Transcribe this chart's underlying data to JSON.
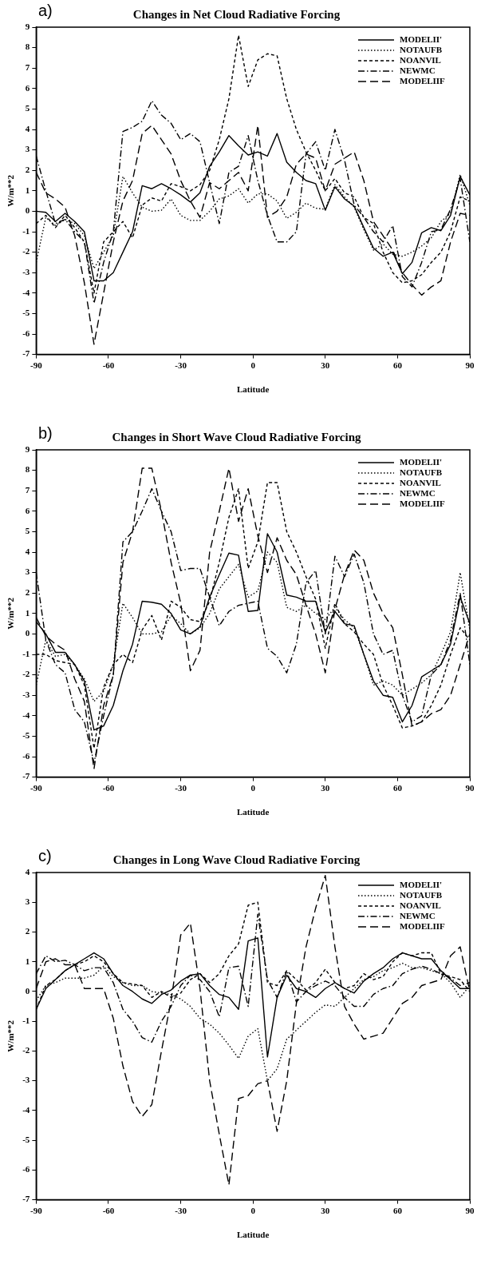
{
  "chart_data": [
    {
      "type": "line",
      "title": "Changes in Net Cloud Radiative Forcing",
      "xlabel": "Latitude",
      "ylabel": "W/m**2",
      "annotations": [
        "a)"
      ],
      "legend": "top right",
      "grid": false,
      "marker": "none",
      "x": [
        -90,
        -86,
        -82,
        -78,
        -74,
        -70,
        -66,
        -62,
        -58,
        -54,
        -50,
        -46,
        -42,
        -38,
        -34,
        -30,
        -26,
        -22,
        -18,
        -14,
        -10,
        -6,
        -2,
        2,
        6,
        10,
        14,
        18,
        22,
        26,
        30,
        34,
        38,
        42,
        46,
        50,
        54,
        58,
        62,
        66,
        70,
        74,
        78,
        82,
        86,
        90
      ],
      "xlim": [
        -90,
        90
      ],
      "xticks": [
        -90,
        -60,
        -30,
        0,
        30,
        60,
        90
      ],
      "ylim": [
        -7,
        9
      ],
      "yticks": [
        -7,
        -6,
        -5,
        -4,
        -3,
        -2,
        -1,
        0,
        1,
        2,
        3,
        4,
        5,
        6,
        7,
        8,
        9
      ],
      "series": [
        {
          "name": "MODELII'",
          "color": "#000000",
          "line_style": "solid",
          "values": [
            0,
            -0.05,
            -0.5,
            -0.1,
            -0.5,
            -1.0,
            -3.4,
            -3.4,
            -3.0,
            -2.0,
            -1.0,
            1.25,
            1.1,
            1.35,
            1.1,
            0.8,
            0.45,
            0.9,
            2.2,
            2.9,
            3.7,
            3.2,
            2.75,
            2.9,
            2.7,
            3.8,
            2.4,
            1.9,
            1.5,
            1.35,
            0.05,
            1.2,
            0.6,
            0.25,
            -0.8,
            -1.8,
            -2.2,
            -2.0,
            -3.05,
            -2.5,
            -1.05,
            -0.8,
            -0.95,
            -0.2,
            1.7,
            0.8
          ]
        },
        {
          "name": "NOTAUFB",
          "color": "#000000",
          "line_style": "dotted",
          "values": [
            -2.5,
            -0.3,
            -0.7,
            -0.4,
            -0.6,
            -1.2,
            -2.8,
            -2.0,
            -1.2,
            1.7,
            0.9,
            0.2,
            0.0,
            0.05,
            0.6,
            -0.2,
            -0.45,
            -0.45,
            0.0,
            0.6,
            0.75,
            1.1,
            0.4,
            0.85,
            0.85,
            0.5,
            -0.35,
            -0.05,
            0.4,
            0.15,
            0.1,
            1.3,
            0.7,
            0.2,
            -0.9,
            -1.9,
            -1.6,
            -2.1,
            -2.2,
            -2.0,
            -1.7,
            -1.3,
            -0.5,
            -0.1,
            1.8,
            0.3
          ]
        },
        {
          "name": "NOANVIL",
          "color": "#000000",
          "line_style": "dashed",
          "values": [
            -0.6,
            -0.2,
            -0.8,
            -0.2,
            -0.8,
            -1.5,
            -4.0,
            -1.5,
            -1.0,
            -0.5,
            -1.3,
            0.3,
            0.65,
            0.5,
            1.35,
            1.2,
            1.0,
            1.3,
            2.0,
            3.5,
            5.5,
            8.6,
            6.1,
            7.4,
            7.7,
            7.6,
            5.5,
            4.0,
            2.9,
            2.0,
            1.0,
            1.6,
            0.9,
            0.7,
            -0.3,
            -0.6,
            -2.0,
            -3.0,
            -3.5,
            -3.4,
            -3.1,
            -2.5,
            -2.0,
            -1.0,
            0.7,
            0.5
          ]
        },
        {
          "name": "NEWMC",
          "color": "#000000",
          "line_style": "dashdot",
          "values": [
            2.7,
            1.0,
            -0.6,
            -0.4,
            -1.0,
            -1.5,
            -4.5,
            -2.5,
            -1.0,
            3.9,
            4.1,
            4.4,
            5.4,
            4.7,
            4.3,
            3.5,
            3.8,
            3.4,
            1.4,
            -0.6,
            1.9,
            2.2,
            3.7,
            1.5,
            -0.2,
            -1.5,
            -1.5,
            -1.0,
            2.8,
            3.4,
            2.0,
            4.0,
            2.5,
            0.3,
            -0.3,
            -1.0,
            -1.5,
            -0.7,
            -3.2,
            -3.7,
            -2.5,
            -1.0,
            -0.9,
            0.1,
            1.6,
            -1.5
          ]
        },
        {
          "name": "MODELIIF",
          "color": "#000000",
          "line_style": "longdash",
          "values": [
            1.9,
            0.9,
            0.6,
            0.2,
            -1.2,
            -3.5,
            -6.5,
            -4.0,
            -1.5,
            0.5,
            1.5,
            3.8,
            4.2,
            3.5,
            2.8,
            1.5,
            0.5,
            -0.3,
            1.4,
            1.1,
            1.5,
            1.9,
            1.0,
            4.2,
            -0.3,
            0.0,
            0.7,
            2.3,
            2.8,
            2.6,
            1.0,
            2.3,
            2.6,
            2.9,
            1.5,
            -0.5,
            -1.2,
            -1.9,
            -3.0,
            -3.6,
            -4.1,
            -3.7,
            -3.4,
            -1.5,
            -0.1,
            -0.2
          ]
        }
      ]
    },
    {
      "type": "line",
      "title": "Changes in Short Wave Cloud Radiative Forcing",
      "xlabel": "Latitude",
      "ylabel": "W/m**2",
      "annotations": [
        "b)"
      ],
      "legend": "top right",
      "grid": false,
      "marker": "none",
      "x": [
        -90,
        -86,
        -82,
        -78,
        -74,
        -70,
        -66,
        -62,
        -58,
        -54,
        -50,
        -46,
        -42,
        -38,
        -34,
        -30,
        -26,
        -22,
        -18,
        -14,
        -10,
        -6,
        -2,
        2,
        6,
        10,
        14,
        18,
        22,
        26,
        30,
        34,
        38,
        42,
        46,
        50,
        54,
        58,
        62,
        66,
        70,
        74,
        78,
        82,
        86,
        90
      ],
      "xlim": [
        -90,
        90
      ],
      "xticks": [
        -90,
        -60,
        -30,
        0,
        30,
        60,
        90
      ],
      "ylim": [
        -7,
        9
      ],
      "yticks": [
        -7,
        -6,
        -5,
        -4,
        -3,
        -2,
        -1,
        0,
        1,
        2,
        3,
        4,
        5,
        6,
        7,
        8,
        9
      ],
      "series": [
        {
          "name": "MODELII'",
          "color": "#000000",
          "line_style": "solid",
          "values": [
            0.6,
            0,
            -0.9,
            -0.9,
            -1.5,
            -2.3,
            -4.7,
            -4.5,
            -3.5,
            -1.8,
            -0.5,
            1.6,
            1.55,
            1.45,
            1.0,
            0.2,
            0.0,
            0.35,
            1.8,
            2.9,
            3.95,
            3.85,
            1.1,
            1.15,
            4.9,
            4.0,
            1.9,
            1.8,
            1.6,
            1.6,
            0.1,
            1.1,
            0.5,
            0.4,
            -1.0,
            -2.3,
            -3.0,
            -3.1,
            -4.3,
            -3.5,
            -2.1,
            -1.8,
            -1.5,
            -0.5,
            1.8,
            0.5
          ]
        },
        {
          "name": "NOTAUFB",
          "color": "#000000",
          "line_style": "dotted",
          "values": [
            -2.5,
            -0.3,
            -1.1,
            -1.0,
            -1.5,
            -2.2,
            -3.3,
            -2.8,
            -1.5,
            1.5,
            0.8,
            0.0,
            0.0,
            0.1,
            0.9,
            0.5,
            0.0,
            0.3,
            1.0,
            2.2,
            2.8,
            3.4,
            1.8,
            2.1,
            4.0,
            3.5,
            1.3,
            1.1,
            1.4,
            1.0,
            0.7,
            1.3,
            0.7,
            0.3,
            -1.0,
            -2.5,
            -2.3,
            -2.5,
            -3.0,
            -2.7,
            -2.4,
            -2.0,
            -1.0,
            0.1,
            3.0,
            0.2
          ]
        },
        {
          "name": "NOANVIL",
          "color": "#000000",
          "line_style": "dashed",
          "values": [
            -1.0,
            -1.0,
            -1.3,
            -1.4,
            -1.5,
            -2.5,
            -5.6,
            -2.6,
            -1.5,
            -1.0,
            -1.4,
            0.2,
            0.9,
            -0.3,
            1.6,
            1.3,
            0.7,
            0.6,
            1.6,
            3.5,
            5.7,
            7.1,
            3.2,
            4.5,
            7.4,
            7.4,
            5.0,
            4.0,
            2.8,
            1.7,
            -0.7,
            1.5,
            0.5,
            0.1,
            -0.5,
            -1.0,
            -2.5,
            -3.5,
            -4.6,
            -4.5,
            -4.3,
            -3.5,
            -2.5,
            -1.0,
            0.3,
            -0.3
          ]
        },
        {
          "name": "NEWMC",
          "color": "#000000",
          "line_style": "dashdot",
          "values": [
            3.0,
            -0.3,
            -1.5,
            -1.9,
            -3.7,
            -4.3,
            -6.3,
            -4.0,
            -2.0,
            4.5,
            5.0,
            6.0,
            7.1,
            6.0,
            5.0,
            3.1,
            3.2,
            3.2,
            1.8,
            0.4,
            1.1,
            1.4,
            1.5,
            1.6,
            -0.7,
            -1.1,
            -1.9,
            -0.5,
            2.5,
            3.1,
            0.0,
            3.8,
            2.8,
            3.9,
            2.5,
            0.0,
            -1.0,
            -0.8,
            -3.0,
            -4.3,
            -4.0,
            -2.0,
            -1.5,
            -0.3,
            2.0,
            -1.5
          ]
        },
        {
          "name": "MODELIIF",
          "color": "#000000",
          "line_style": "longdash",
          "values": [
            0.8,
            -0.1,
            -0.5,
            -0.8,
            -2.2,
            -3.3,
            -6.6,
            -3.5,
            -2.0,
            3.5,
            5.0,
            8.1,
            8.1,
            6.0,
            3.5,
            1.5,
            -1.8,
            -0.8,
            4.0,
            6.0,
            8.1,
            5.5,
            7.1,
            4.8,
            3.0,
            4.7,
            3.6,
            2.9,
            1.4,
            0.0,
            -1.9,
            1.2,
            2.9,
            4.1,
            3.6,
            2.0,
            1.0,
            0.3,
            -2.0,
            -4.5,
            -4.3,
            -3.9,
            -3.7,
            -3.0,
            -1.5,
            0.0
          ]
        }
      ]
    },
    {
      "type": "line",
      "title": "Changes in Long Wave Cloud Radiative Forcing",
      "xlabel": "Latitude",
      "ylabel": "W/m**2",
      "annotations": [
        "c)"
      ],
      "legend": "top right",
      "grid": false,
      "marker": "none",
      "x": [
        -90,
        -86,
        -82,
        -78,
        -74,
        -70,
        -66,
        -62,
        -58,
        -54,
        -50,
        -46,
        -42,
        -38,
        -34,
        -30,
        -26,
        -22,
        -18,
        -14,
        -10,
        -6,
        -2,
        2,
        6,
        10,
        14,
        18,
        22,
        26,
        30,
        34,
        38,
        42,
        46,
        50,
        54,
        58,
        62,
        66,
        70,
        74,
        78,
        82,
        86,
        90
      ],
      "xlim": [
        -90,
        90
      ],
      "xticks": [
        -90,
        -60,
        -30,
        0,
        30,
        60,
        90
      ],
      "ylim": [
        -7,
        4
      ],
      "yticks": [
        -7,
        -6,
        -5,
        -4,
        -3,
        -2,
        -1,
        0,
        1,
        2,
        3,
        4
      ],
      "series": [
        {
          "name": "MODELII'",
          "color": "#000000",
          "line_style": "solid",
          "values": [
            -0.6,
            0.1,
            0.4,
            0.7,
            0.9,
            1.1,
            1.3,
            1.1,
            0.6,
            0.2,
            0.0,
            -0.25,
            -0.4,
            -0.1,
            0.05,
            0.35,
            0.55,
            0.6,
            0.2,
            -0.1,
            -0.2,
            -0.6,
            1.7,
            1.8,
            -2.2,
            -0.2,
            0.55,
            0.1,
            0.0,
            -0.2,
            0.1,
            0.3,
            0.1,
            -0.05,
            0.35,
            0.6,
            0.8,
            1.1,
            1.3,
            1.2,
            1.1,
            1.1,
            0.7,
            0.4,
            0.1,
            0.1
          ]
        },
        {
          "name": "NOTAUFB",
          "color": "#000000",
          "line_style": "dotted",
          "values": [
            -0.3,
            0.2,
            0.3,
            0.45,
            0.45,
            0.45,
            0.55,
            0.85,
            0.5,
            0.3,
            0.2,
            0.2,
            0.0,
            -0.05,
            -0.1,
            -0.25,
            -0.5,
            -0.9,
            -1.1,
            -1.4,
            -1.8,
            -2.25,
            -1.5,
            -1.25,
            -3.0,
            -2.6,
            -1.6,
            -1.3,
            -1.0,
            -0.7,
            -0.45,
            -0.5,
            -0.2,
            0.1,
            0.4,
            0.5,
            0.7,
            0.8,
            0.95,
            0.8,
            0.8,
            0.7,
            0.6,
            0.3,
            -0.2,
            0.2
          ]
        },
        {
          "name": "NOANVIL",
          "color": "#000000",
          "line_style": "dashed",
          "values": [
            -0.6,
            0.2,
            0.4,
            0.7,
            0.9,
            1.0,
            1.2,
            1.0,
            0.6,
            0.3,
            0.25,
            0.2,
            -0.2,
            0.0,
            -0.2,
            -0.05,
            0.4,
            0.6,
            0.3,
            0.6,
            1.2,
            1.6,
            2.9,
            3.0,
            0.3,
            0.2,
            0.7,
            0.4,
            0.05,
            0.3,
            0.75,
            0.3,
            0.1,
            0.2,
            0.6,
            0.4,
            0.5,
            1.0,
            1.3,
            1.2,
            1.3,
            1.3,
            0.6,
            0.5,
            0.4,
            0.0
          ]
        },
        {
          "name": "NEWMC",
          "color": "#000000",
          "line_style": "dashdot",
          "values": [
            0.6,
            1.2,
            1.0,
            1.05,
            0.9,
            0.7,
            0.8,
            0.8,
            0.3,
            -0.6,
            -1.0,
            -1.55,
            -1.7,
            -1.0,
            -0.5,
            0.2,
            0.55,
            0.4,
            0.0,
            -0.85,
            0.8,
            0.85,
            -0.5,
            2.6,
            0.4,
            -0.2,
            0.7,
            -0.35,
            0.0,
            0.2,
            0.35,
            0.2,
            -0.2,
            -0.5,
            -0.5,
            -0.1,
            0.1,
            0.2,
            0.6,
            0.75,
            0.85,
            0.75,
            0.6,
            0.45,
            0.2,
            0.3
          ]
        },
        {
          "name": "MODELIIF",
          "color": "#000000",
          "line_style": "longdash",
          "values": [
            0.1,
            1.0,
            1.1,
            0.9,
            0.9,
            0.1,
            0.1,
            0.1,
            -0.9,
            -2.5,
            -3.7,
            -4.2,
            -3.8,
            -2.0,
            -0.3,
            1.9,
            2.3,
            0.1,
            -3.0,
            -4.8,
            -6.5,
            -3.6,
            -3.5,
            -3.1,
            -3.0,
            -4.7,
            -3.0,
            -0.4,
            1.5,
            2.8,
            3.9,
            1.5,
            -0.5,
            -1.1,
            -1.6,
            -1.5,
            -1.4,
            -0.9,
            -0.4,
            -0.2,
            0.2,
            0.3,
            0.4,
            1.2,
            1.5,
            0.0
          ]
        }
      ]
    }
  ]
}
